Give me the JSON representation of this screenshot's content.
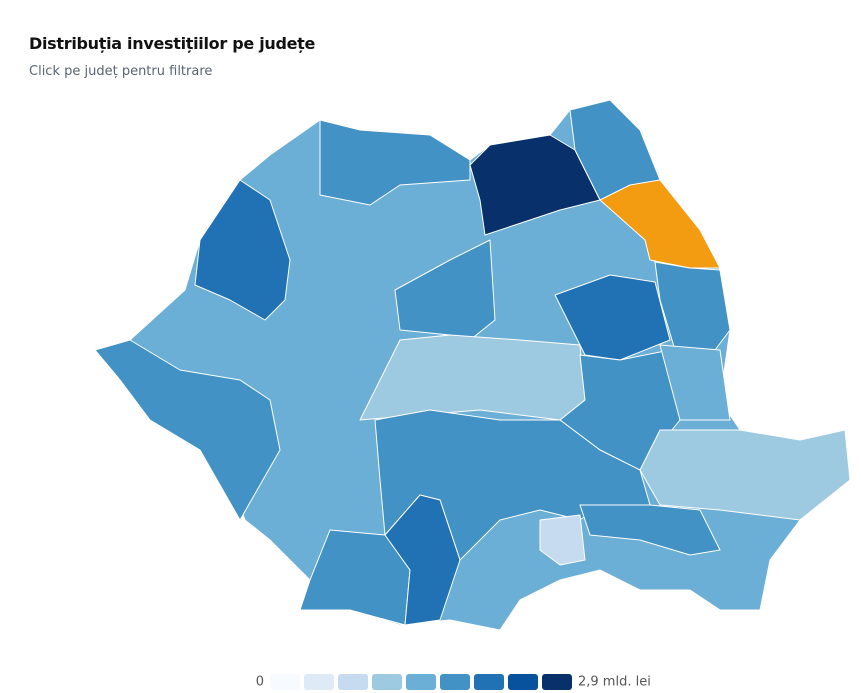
{
  "header": {
    "title": "Distribuția investițiilor pe județe",
    "subtitle": "Click pe județ pentru filtrare"
  },
  "legend": {
    "min_label": "0",
    "max_label": "2,9 mld. lei",
    "colors": [
      "#f7fbff",
      "#deebf7",
      "#c6dbef",
      "#9ecae1",
      "#6baed6",
      "#4292c6",
      "#2171b5",
      "#08519c",
      "#08306b"
    ]
  }
}
